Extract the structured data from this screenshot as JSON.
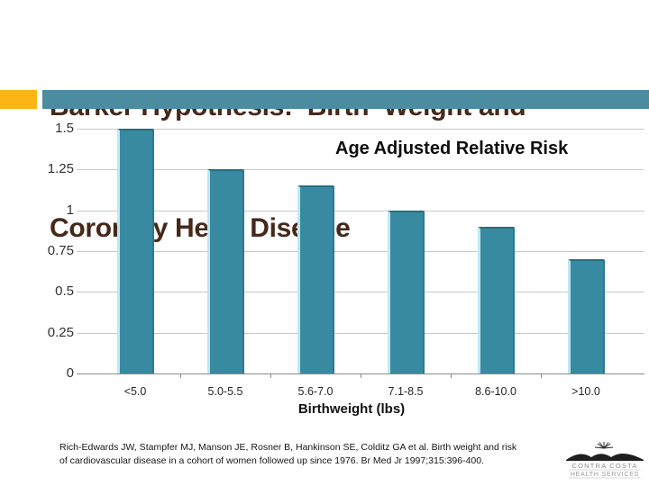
{
  "slide": {
    "title_line1": "Barker Hypothesis:  Birth  Weight and",
    "title_line2": "Coronary Heart Disease",
    "title_color": "#46281a",
    "accent_yellow": "#fbb616",
    "accent_teal": "#4b8ca0"
  },
  "chart_data": {
    "type": "bar",
    "title": "Age Adjusted Relative Risk",
    "categories": [
      "<5.0",
      "5.0-5.5",
      "5.6-7.0",
      "7.1-8.5",
      "8.6-10.0",
      ">10.0"
    ],
    "values": [
      1.5,
      1.25,
      1.15,
      1.0,
      0.9,
      0.7
    ],
    "xlabel": "Birthweight (lbs)",
    "ylabel": "",
    "ylim": [
      0,
      1.5
    ],
    "ytick": 0.25,
    "grid": true,
    "legend_position": "none",
    "bar_color": "#378aa0",
    "bar_highlight": "#bee7f0",
    "bar_shadow": "#2d7991"
  },
  "citation": {
    "lines": [
      "Rich-Edwards JW, Stampfer MJ, Manson JE, Rosner B, Hankinson SE, Colditz GA et al. Birth weight and risk",
      "of cardiovascular disease in a cohort of women followed up since 1976.  Br Med  Jr 1997;315:396-400."
    ]
  },
  "logo": {
    "line1": "CONTRA COSTA",
    "line2": "HEALTH SERVICES"
  }
}
